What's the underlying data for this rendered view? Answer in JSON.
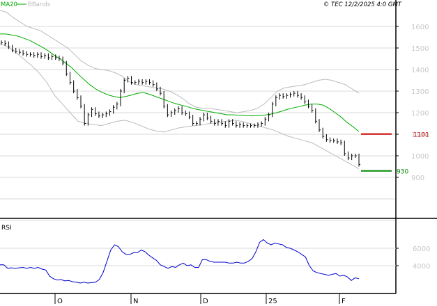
{
  "header": {
    "legend_ma": "MA20",
    "legend_bb": "BBands",
    "copyright": "© TEC 12/2/2025 4:0 GMT"
  },
  "colors": {
    "ma": "#00aa00",
    "bbands": "#bbbbbb",
    "price": "#000000",
    "rsi": "#0000cc",
    "resistance": "#cc0000",
    "support": "#008800",
    "axis_text": "#c8c8c8",
    "grid": "#d8d8d8"
  },
  "chart_data": [
    {
      "type": "line",
      "subtype": "bar-ohlc",
      "title": "",
      "ylim": [
        800,
        1700
      ],
      "y_ticks": [
        "1600",
        "1500",
        "1400",
        "1300",
        "1200",
        "1100",
        "1000",
        "900"
      ],
      "x_labels": [
        "O",
        "N",
        "D",
        "25",
        "F"
      ],
      "price_series": [
        1525,
        1520,
        1505,
        1490,
        1485,
        1480,
        1475,
        1470,
        1470,
        1465,
        1470,
        1460,
        1465,
        1455,
        1460,
        1455,
        1450,
        1430,
        1380,
        1340,
        1300,
        1270,
        1230,
        1150,
        1190,
        1215,
        1195,
        1185,
        1190,
        1195,
        1205,
        1225,
        1240,
        1300,
        1350,
        1360,
        1340,
        1340,
        1345,
        1340,
        1345,
        1340,
        1330,
        1310,
        1290,
        1230,
        1190,
        1200,
        1210,
        1220,
        1200,
        1195,
        1180,
        1150,
        1150,
        1170,
        1190,
        1175,
        1160,
        1150,
        1160,
        1150,
        1140,
        1160,
        1150,
        1140,
        1145,
        1140,
        1140,
        1140,
        1140,
        1145,
        1150,
        1170,
        1190,
        1240,
        1270,
        1280,
        1275,
        1280,
        1285,
        1290,
        1280,
        1270,
        1250,
        1230,
        1210,
        1160,
        1120,
        1090,
        1075,
        1070,
        1070,
        1065,
        1060,
        1010,
        990,
        1000,
        1000,
        960
      ],
      "ma20": [
        1565,
        1565,
        1560,
        1555,
        1545,
        1535,
        1520,
        1505,
        1488,
        1468,
        1450,
        1430,
        1408,
        1380,
        1355,
        1330,
        1310,
        1295,
        1283,
        1275,
        1270,
        1275,
        1282,
        1290,
        1293,
        1285,
        1275,
        1265,
        1255,
        1245,
        1237,
        1230,
        1222,
        1215,
        1210,
        1205,
        1200,
        1195,
        1190,
        1190,
        1188,
        1186,
        1185,
        1186,
        1188,
        1192,
        1198,
        1206,
        1215,
        1222,
        1228,
        1235,
        1240,
        1240,
        1235,
        1220,
        1200,
        1180,
        1155,
        1135,
        1112
      ],
      "bband_upper": [
        1675,
        1665,
        1640,
        1620,
        1600,
        1590,
        1580,
        1560,
        1540,
        1520,
        1500,
        1470,
        1440,
        1420,
        1405,
        1400,
        1395,
        1385,
        1370,
        1345,
        1330,
        1325,
        1320,
        1315,
        1310,
        1300,
        1285,
        1265,
        1240,
        1225,
        1220,
        1220,
        1215,
        1210,
        1205,
        1200,
        1205,
        1210,
        1220,
        1240,
        1270,
        1300,
        1315,
        1320,
        1325,
        1330,
        1340,
        1350,
        1355,
        1350,
        1340,
        1330,
        1310,
        1290
      ],
      "bband_lower": [
        1520,
        1505,
        1480,
        1450,
        1420,
        1385,
        1340,
        1280,
        1240,
        1200,
        1160,
        1150,
        1145,
        1140,
        1150,
        1160,
        1165,
        1155,
        1140,
        1125,
        1115,
        1110,
        1120,
        1130,
        1135,
        1140,
        1145,
        1150,
        1155,
        1160,
        1165,
        1160,
        1150,
        1140,
        1130,
        1120,
        1105,
        1090,
        1080,
        1070,
        1060,
        1040,
        1020,
        1000,
        980,
        960,
        940
      ],
      "levels": [
        {
          "label": "1101",
          "value": 1101,
          "color": "#cc0000"
        },
        {
          "label": "930",
          "value": 930,
          "color": "#008800"
        }
      ]
    },
    {
      "type": "line",
      "title": "RSI",
      "ylim": [
        0,
        10000
      ],
      "y_ticks": [
        "6000",
        "4000"
      ],
      "series": [
        {
          "values": [
            4100,
            4100,
            3700,
            3750,
            3700,
            3750,
            3800,
            3700,
            3800,
            3700,
            3800,
            3600,
            3500,
            2800,
            2500,
            2350,
            2400,
            2250,
            2300,
            2150,
            2100,
            2000,
            2100,
            2000,
            2050,
            2100,
            2400,
            3200,
            4500,
            5800,
            6400,
            6200,
            5600,
            5300,
            5300,
            5500,
            5500,
            5800,
            5600,
            5200,
            4900,
            4600,
            4100,
            3900,
            3700,
            3900,
            3800,
            4100,
            4300,
            4000,
            4100,
            3800,
            3800,
            4700,
            4700,
            4500,
            4400,
            4400,
            4400,
            4400,
            4300,
            4300,
            4400,
            4300,
            4300,
            4500,
            4800,
            5600,
            6700,
            7000,
            6600,
            6400,
            6600,
            6500,
            6400,
            6100,
            6000,
            5800,
            5600,
            5300,
            5000,
            4000,
            3400,
            3200,
            3100,
            3000,
            2900,
            3000,
            3100,
            2800,
            2900,
            2700,
            2300,
            2600,
            2500
          ]
        }
      ]
    }
  ]
}
